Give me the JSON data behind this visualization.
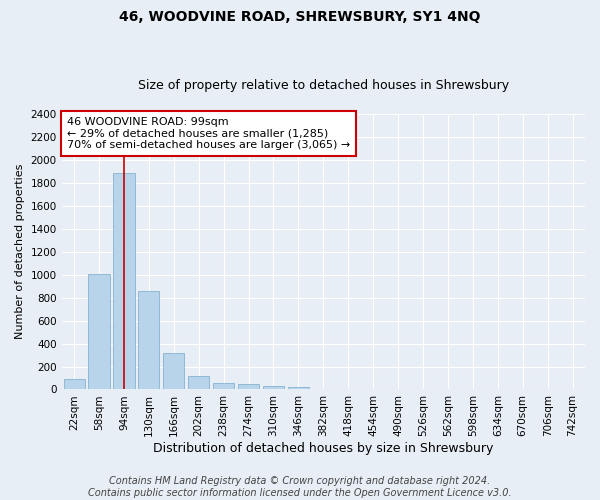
{
  "title": "46, WOODVINE ROAD, SHREWSBURY, SY1 4NQ",
  "subtitle": "Size of property relative to detached houses in Shrewsbury",
  "xlabel": "Distribution of detached houses by size in Shrewsbury",
  "ylabel": "Number of detached properties",
  "bar_labels": [
    "22sqm",
    "58sqm",
    "94sqm",
    "130sqm",
    "166sqm",
    "202sqm",
    "238sqm",
    "274sqm",
    "310sqm",
    "346sqm",
    "382sqm",
    "418sqm",
    "454sqm",
    "490sqm",
    "526sqm",
    "562sqm",
    "598sqm",
    "634sqm",
    "670sqm",
    "706sqm",
    "742sqm"
  ],
  "bar_values": [
    95,
    1010,
    1890,
    855,
    315,
    120,
    60,
    50,
    30,
    25,
    5,
    0,
    0,
    0,
    0,
    0,
    0,
    0,
    0,
    0,
    0
  ],
  "bar_color": "#b8d4ea",
  "bar_edge_color": "#7aaacb",
  "vline_color": "#cc0000",
  "annotation_box_text": "46 WOODVINE ROAD: 99sqm\n← 29% of detached houses are smaller (1,285)\n70% of semi-detached houses are larger (3,065) →",
  "annotation_box_facecolor": "#ffffff",
  "annotation_box_edgecolor": "#cc0000",
  "ylim": [
    0,
    2400
  ],
  "yticks": [
    0,
    200,
    400,
    600,
    800,
    1000,
    1200,
    1400,
    1600,
    1800,
    2000,
    2200,
    2400
  ],
  "background_color": "#e8eef5",
  "grid_color": "#ffffff",
  "footer_line1": "Contains HM Land Registry data © Crown copyright and database right 2024.",
  "footer_line2": "Contains public sector information licensed under the Open Government Licence v3.0.",
  "title_fontsize": 10,
  "subtitle_fontsize": 9,
  "xlabel_fontsize": 9,
  "ylabel_fontsize": 8,
  "tick_fontsize": 7.5,
  "annotation_fontsize": 8,
  "footer_fontsize": 7
}
